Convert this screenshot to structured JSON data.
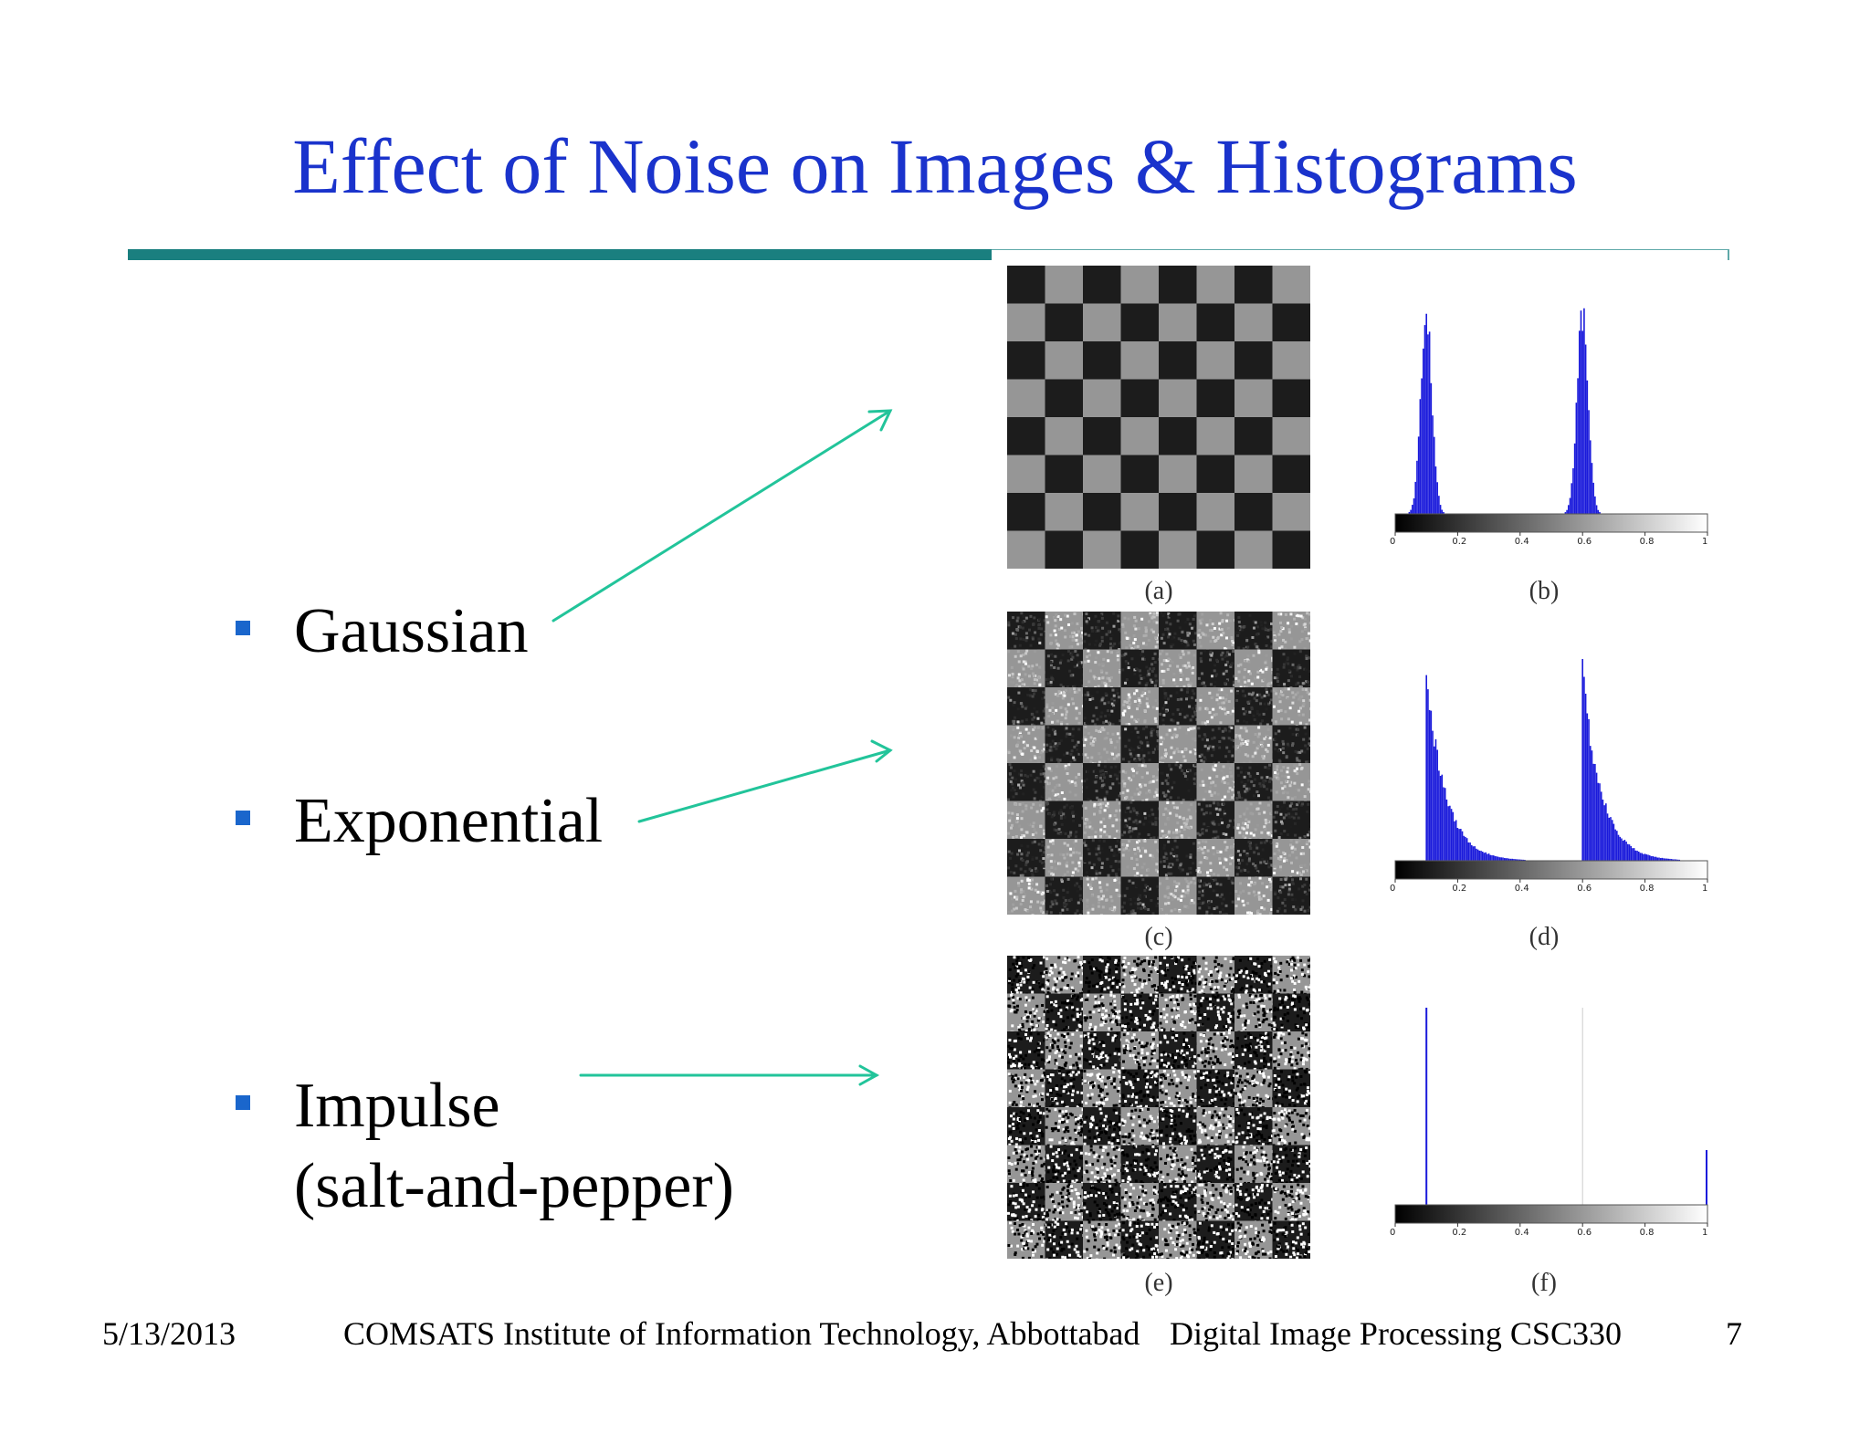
{
  "title": "Effect of Noise on Images & Histograms",
  "bullets": [
    {
      "label": "Gaussian"
    },
    {
      "label": "Exponential"
    },
    {
      "label": "Impulse\n(salt-and-pepper)"
    }
  ],
  "figure": {
    "captions": [
      "(a)",
      "(b)",
      "(c)",
      "(d)",
      "(e)",
      "(f)"
    ],
    "axis_ticks": [
      "0",
      "0.2",
      "0.4",
      "0.6",
      "0.8",
      "1"
    ],
    "noise_types": [
      "gaussian",
      "exponential",
      "impulse"
    ]
  },
  "footer": {
    "date": "5/13/2013",
    "institution": "COMSATS Institute of Information Technology, Abbottabad",
    "course": "Digital Image Processing CSC330",
    "page": "7"
  },
  "colors": {
    "title": "#1a33cc",
    "bullet": "#1a66cc",
    "rule": "#1a7f7f",
    "arrow": "#22c49a",
    "histogram": "#1a1adb"
  },
  "icons": {
    "bullet": "square-bullet-icon",
    "arrow": "arrow-right-icon"
  }
}
